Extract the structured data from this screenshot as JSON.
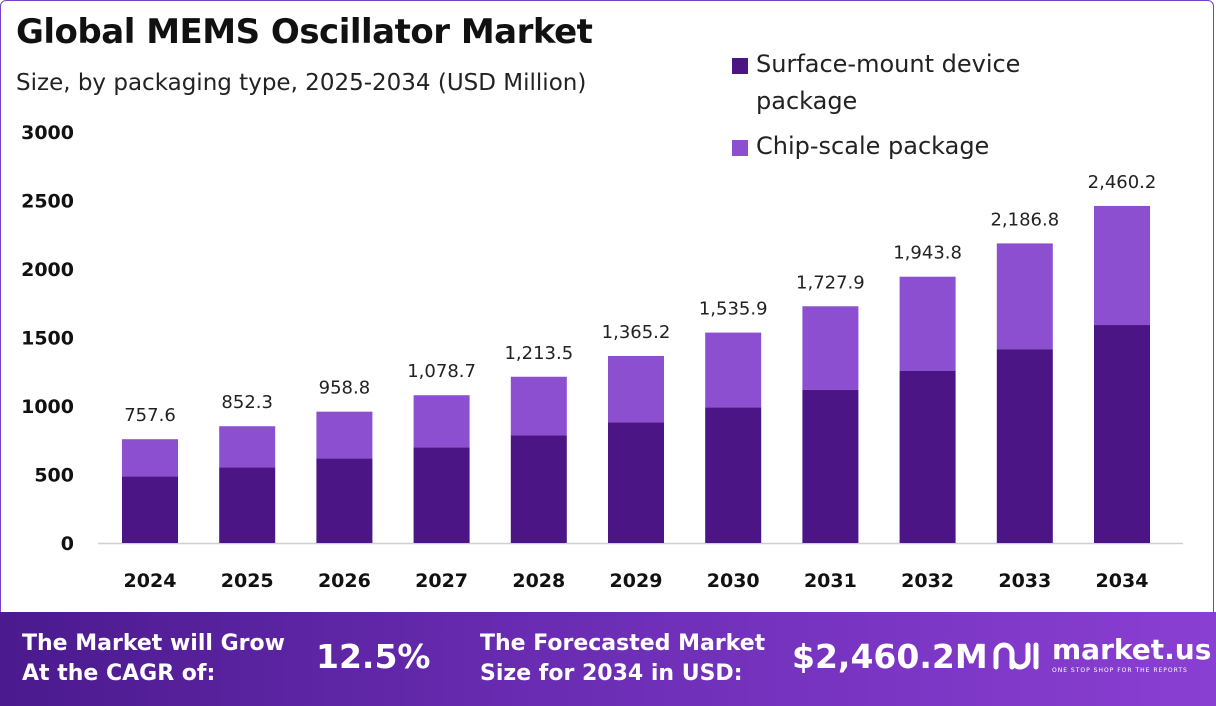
{
  "title": "Global MEMS Oscillator Market",
  "subtitle": "Size, by packaging type, 2025-2034 (USD Million)",
  "legend": [
    {
      "label": "Surface-mount device package",
      "color": "#4b1585"
    },
    {
      "label": "Chip-scale package",
      "color": "#8b4fd0"
    }
  ],
  "chart_data": {
    "type": "bar",
    "stacked": true,
    "categories": [
      "2024",
      "2025",
      "2026",
      "2027",
      "2028",
      "2029",
      "2030",
      "2031",
      "2032",
      "2033",
      "2034"
    ],
    "series": [
      {
        "name": "Surface-mount device package",
        "color": "#4b1585",
        "values": [
          485,
          553,
          618,
          699,
          787,
          880,
          991,
          1117,
          1258,
          1415,
          1591
        ]
      },
      {
        "name": "Chip-scale package",
        "color": "#8b4fd0",
        "values": [
          272.6,
          299.3,
          340.8,
          379.7,
          426.5,
          485.2,
          544.9,
          610.9,
          685.8,
          771.8,
          869.2
        ]
      }
    ],
    "totals": [
      "757.6",
      "852.3",
      "958.8",
      "1,078.7",
      "1,213.5",
      "1,365.2",
      "1,535.9",
      "1,727.9",
      "1,943.8",
      "2,186.8",
      "2,460.2"
    ],
    "total_values": [
      757.6,
      852.3,
      958.8,
      1078.7,
      1213.5,
      1365.2,
      1535.9,
      1727.9,
      1943.8,
      2186.8,
      2460.2
    ],
    "yticks": [
      "0",
      "500",
      "1000",
      "1500",
      "2000",
      "2500",
      "3000"
    ],
    "ylim": [
      0,
      3000
    ],
    "grid": false,
    "legend_position": "top-right"
  },
  "footer": {
    "cagr_label": "The Market will Grow At the CAGR of:",
    "cagr_value": "12.5%",
    "forecast_label": "The Forecasted Market Size for 2034 in USD:",
    "forecast_value": "$2,460.2M",
    "brand_name": "market.us",
    "brand_tagline": "ONE STOP SHOP FOR THE REPORTS",
    "logo_icon": "market-us-logo-icon"
  }
}
